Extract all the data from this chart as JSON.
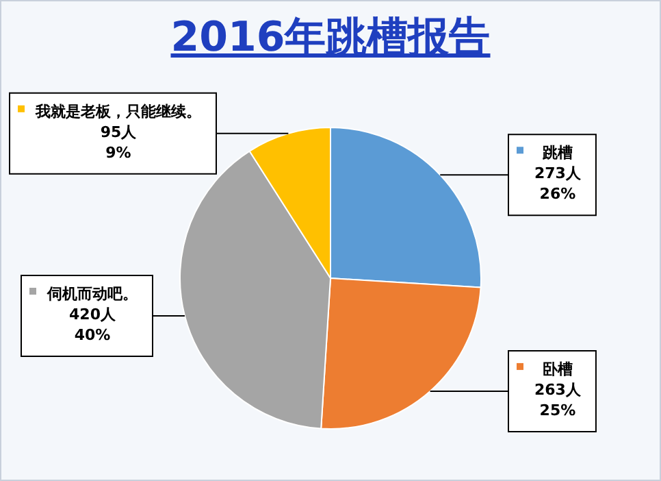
{
  "chart_data": {
    "type": "pie",
    "title": "2016年跳槽报告",
    "categories": [
      "跳槽",
      "卧槽",
      "伺机而动吧。",
      "我就是老板，只能继续。"
    ],
    "values": [
      273,
      263,
      420,
      95
    ],
    "value_labels": [
      "273人\n26%",
      "263人\n25%",
      "420人\n40%",
      "95人\n9%"
    ],
    "colors": [
      "#5b9bd5",
      "#ed7d31",
      "#a5a5a5",
      "#ffc000"
    ],
    "legend": "left"
  }
}
